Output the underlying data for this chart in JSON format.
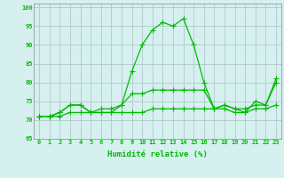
{
  "xlabel": "Humidité relative (%)",
  "background_color": "#d6f0f0",
  "grid_color": "#b0c8c8",
  "line_color": "#00bb00",
  "xlim": [
    -0.5,
    23.5
  ],
  "ylim": [
    65,
    101
  ],
  "yticks": [
    65,
    70,
    75,
    80,
    85,
    90,
    95,
    100
  ],
  "xticks": [
    0,
    1,
    2,
    3,
    4,
    5,
    6,
    7,
    8,
    9,
    10,
    11,
    12,
    13,
    14,
    15,
    16,
    17,
    18,
    19,
    20,
    21,
    22,
    23
  ],
  "series1": [
    71,
    71,
    72,
    74,
    74,
    72,
    72,
    72,
    74,
    83,
    90,
    94,
    96,
    95,
    97,
    90,
    80,
    73,
    74,
    73,
    72,
    75,
    74,
    81
  ],
  "series2": [
    71,
    71,
    72,
    74,
    74,
    72,
    73,
    73,
    74,
    77,
    77,
    78,
    78,
    78,
    78,
    78,
    78,
    73,
    74,
    73,
    73,
    74,
    74,
    80
  ],
  "series3": [
    71,
    71,
    71,
    72,
    72,
    72,
    72,
    72,
    72,
    72,
    72,
    73,
    73,
    73,
    73,
    73,
    73,
    73,
    73,
    72,
    72,
    73,
    73,
    74
  ]
}
